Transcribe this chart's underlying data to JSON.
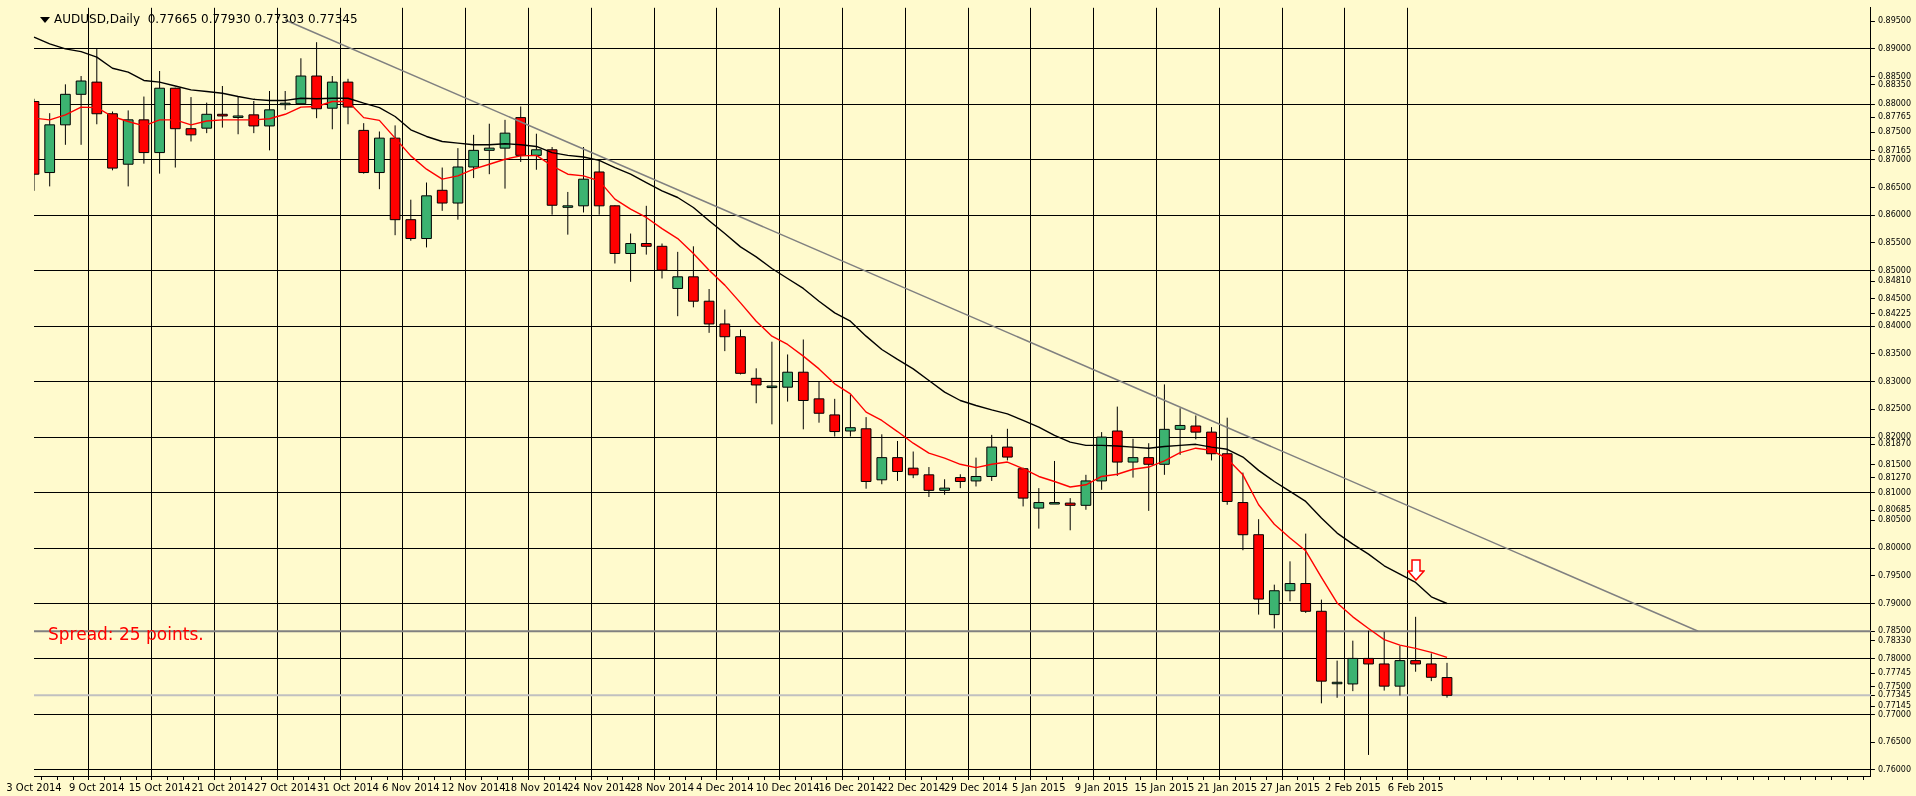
{
  "chart_data": {
    "type": "candlestick",
    "title": "AUDUSD,Daily  0.77665 0.77930 0.77303 0.77345",
    "annotations": [
      "Spread: 25 points."
    ],
    "categories": [
      "3 Oct 2014",
      null,
      null,
      null,
      "9 Oct 2014",
      null,
      null,
      null,
      "15 Oct 2014",
      null,
      null,
      null,
      "21 Oct 2014",
      null,
      null,
      null,
      "27 Oct 2014",
      null,
      null,
      null,
      "31 Oct 2014",
      null,
      null,
      null,
      "6 Nov 2014",
      null,
      null,
      null,
      "12 Nov 2014",
      null,
      null,
      null,
      "18 Nov 2014",
      null,
      null,
      null,
      "24 Nov 2014",
      null,
      null,
      null,
      "28 Nov 2014",
      null,
      null,
      null,
      "4 Dec 2014",
      null,
      null,
      null,
      "10 Dec 2014",
      null,
      null,
      null,
      "16 Dec 2014",
      null,
      null,
      null,
      "22 Dec 2014",
      null,
      null,
      null,
      "29 Dec 2014",
      null,
      null,
      null,
      "5 Jan 2015",
      null,
      null,
      null,
      "9 Jan 2015",
      null,
      null,
      null,
      "15 Jan 2015",
      null,
      null,
      null,
      "21 Jan 2015",
      null,
      null,
      null,
      "27 Jan 2015",
      null,
      null,
      null,
      "2 Feb 2015",
      null,
      null,
      null,
      "6 Feb 2015",
      null,
      null,
      null,
      null,
      null,
      null,
      null,
      null,
      null,
      null,
      null,
      null,
      null,
      null,
      null,
      null,
      null,
      null,
      null,
      null,
      null,
      null,
      null,
      null,
      null,
      null,
      null,
      null,
      null
    ],
    "ohlc": [
      [
        0.8805,
        0.881,
        0.8644,
        0.8674
      ],
      [
        0.8677,
        0.8784,
        0.8652,
        0.8763
      ],
      [
        0.8763,
        0.8836,
        0.8727,
        0.8818
      ],
      [
        0.8818,
        0.8851,
        0.8727,
        0.8842
      ],
      [
        0.884,
        0.89,
        0.8764,
        0.8783
      ],
      [
        0.8783,
        0.8787,
        0.8681,
        0.8685
      ],
      [
        0.8692,
        0.8789,
        0.8652,
        0.8772
      ],
      [
        0.8772,
        0.8814,
        0.8693,
        0.8713
      ],
      [
        0.8713,
        0.886,
        0.8675,
        0.8829
      ],
      [
        0.8829,
        0.883,
        0.8686,
        0.8756
      ],
      [
        0.8756,
        0.8813,
        0.8733,
        0.8745
      ],
      [
        0.8757,
        0.8803,
        0.8748,
        0.8782
      ],
      [
        0.8782,
        0.8833,
        0.8758,
        0.8779
      ],
      [
        0.8779,
        0.8815,
        0.8746,
        0.8779
      ],
      [
        0.8781,
        0.8806,
        0.8748,
        0.8761
      ],
      [
        0.8761,
        0.8824,
        0.8717,
        0.879
      ],
      [
        0.8802,
        0.8824,
        0.879,
        0.8802
      ],
      [
        0.8801,
        0.8883,
        0.88,
        0.8851
      ],
      [
        0.8851,
        0.8912,
        0.8775,
        0.8792
      ],
      [
        0.8793,
        0.8851,
        0.8755,
        0.884
      ],
      [
        0.884,
        0.8846,
        0.8764,
        0.8795
      ],
      [
        0.8753,
        0.8766,
        0.8675,
        0.8677
      ],
      [
        0.8677,
        0.8751,
        0.8647,
        0.8739
      ],
      [
        0.8739,
        0.8762,
        0.8564,
        0.8592
      ],
      [
        0.8592,
        0.8628,
        0.8554,
        0.8558
      ],
      [
        0.8558,
        0.8659,
        0.8542,
        0.8635
      ],
      [
        0.8645,
        0.8686,
        0.8608,
        0.8622
      ],
      [
        0.8622,
        0.8721,
        0.8592,
        0.8687
      ],
      [
        0.8687,
        0.8745,
        0.8667,
        0.8717
      ],
      [
        0.8717,
        0.8765,
        0.8674,
        0.8721
      ],
      [
        0.8721,
        0.8772,
        0.8648,
        0.8748
      ],
      [
        0.8776,
        0.8796,
        0.8696,
        0.8708
      ],
      [
        0.8708,
        0.8747,
        0.8682,
        0.8718
      ],
      [
        0.8718,
        0.8723,
        0.8601,
        0.8618
      ],
      [
        0.8617,
        0.8642,
        0.8565,
        0.8617
      ],
      [
        0.8617,
        0.8723,
        0.8605,
        0.8665
      ],
      [
        0.8678,
        0.8701,
        0.8601,
        0.8617
      ],
      [
        0.8617,
        0.8618,
        0.8513,
        0.8531
      ],
      [
        0.8531,
        0.8567,
        0.848,
        0.8549
      ],
      [
        0.8549,
        0.8617,
        0.8529,
        0.8544
      ],
      [
        0.8544,
        0.8549,
        0.8486,
        0.8501
      ],
      [
        0.8468,
        0.8534,
        0.8418,
        0.8489
      ],
      [
        0.8489,
        0.8544,
        0.8434,
        0.8445
      ],
      [
        0.8445,
        0.8467,
        0.8388,
        0.8404
      ],
      [
        0.8404,
        0.843,
        0.8355,
        0.8381
      ],
      [
        0.8381,
        0.8394,
        0.8313,
        0.8315
      ],
      [
        0.8306,
        0.8324,
        0.8261,
        0.8294
      ],
      [
        0.8292,
        0.8372,
        0.8223,
        0.8292
      ],
      [
        0.829,
        0.8349,
        0.8264,
        0.8317
      ],
      [
        0.8317,
        0.8376,
        0.8214,
        0.8266
      ],
      [
        0.8269,
        0.8301,
        0.8226,
        0.8243
      ],
      [
        0.824,
        0.8269,
        0.8201,
        0.821
      ],
      [
        0.8211,
        0.8277,
        0.8201,
        0.8217
      ],
      [
        0.8215,
        0.8236,
        0.8107,
        0.812
      ],
      [
        0.8123,
        0.8205,
        0.8115,
        0.8163
      ],
      [
        0.8163,
        0.8193,
        0.8121,
        0.8138
      ],
      [
        0.8144,
        0.8174,
        0.8126,
        0.8132
      ],
      [
        0.8132,
        0.8146,
        0.8092,
        0.8104
      ],
      [
        0.8104,
        0.8124,
        0.8096,
        0.8108
      ],
      [
        0.8127,
        0.8133,
        0.8108,
        0.812
      ],
      [
        0.8121,
        0.8163,
        0.8111,
        0.8129
      ],
      [
        0.8129,
        0.8204,
        0.8121,
        0.8182
      ],
      [
        0.8182,
        0.8215,
        0.8158,
        0.8164
      ],
      [
        0.8143,
        0.8145,
        0.8075,
        0.809
      ],
      [
        0.8072,
        0.8108,
        0.8035,
        0.8082
      ],
      [
        0.8082,
        0.8157,
        0.8081,
        0.8082
      ],
      [
        0.8081,
        0.809,
        0.8032,
        0.8077
      ],
      [
        0.8077,
        0.8132,
        0.8069,
        0.8121
      ],
      [
        0.8121,
        0.8209,
        0.8105,
        0.82
      ],
      [
        0.8211,
        0.8255,
        0.813,
        0.8155
      ],
      [
        0.8155,
        0.8197,
        0.8127,
        0.8163
      ],
      [
        0.8163,
        0.8189,
        0.8067,
        0.8151
      ],
      [
        0.8151,
        0.8295,
        0.8132,
        0.8214
      ],
      [
        0.8214,
        0.8252,
        0.8168,
        0.8221
      ],
      [
        0.822,
        0.8239,
        0.8196,
        0.8209
      ],
      [
        0.8209,
        0.8218,
        0.8158,
        0.817
      ],
      [
        0.817,
        0.8235,
        0.8078,
        0.8084
      ],
      [
        0.8082,
        0.8136,
        0.7996,
        0.8024
      ],
      [
        0.8024,
        0.8052,
        0.788,
        0.7908
      ],
      [
        0.788,
        0.7934,
        0.7855,
        0.7923
      ],
      [
        0.7923,
        0.7976,
        0.7904,
        0.7936
      ],
      [
        0.7936,
        0.8026,
        0.7883,
        0.7886
      ],
      [
        0.7886,
        0.7907,
        0.772,
        0.776
      ],
      [
        0.7758,
        0.7797,
        0.773,
        0.7758
      ],
      [
        0.7755,
        0.7833,
        0.7742,
        0.7801
      ],
      [
        0.7801,
        0.7851,
        0.7627,
        0.7791
      ],
      [
        0.7791,
        0.7849,
        0.7743,
        0.7751
      ],
      [
        0.7751,
        0.7824,
        0.7734,
        0.7797
      ],
      [
        0.7797,
        0.7876,
        0.7777,
        0.7791
      ],
      [
        0.7791,
        0.781,
        0.776,
        0.7767
      ],
      [
        0.77665,
        0.7793,
        0.77303,
        0.77345
      ],
      null,
      null,
      null,
      null,
      null,
      null,
      null,
      null,
      null,
      null,
      null,
      null,
      null,
      null,
      null,
      null,
      null,
      null,
      null,
      null,
      null,
      null,
      null,
      null,
      null,
      null,
      null
    ],
    "colors": [
      "#ff0000",
      "#3cb371",
      "#3cb371",
      "#3cb371",
      "#ff0000",
      "#ff0000",
      "#3cb371",
      "#ff0000",
      "#3cb371",
      "#ff0000",
      "#ff0000",
      "#3cb371",
      "#ff0000",
      "#3cb371",
      "#ff0000",
      "#3cb371",
      "#3cb371",
      "#3cb371",
      "#ff0000",
      "#3cb371",
      "#ff0000",
      "#ff0000",
      "#3cb371",
      "#ff0000",
      "#ff0000",
      "#3cb371",
      "#ff0000",
      "#3cb371",
      "#3cb371",
      "#3cb371",
      "#3cb371",
      "#ff0000",
      "#3cb371",
      "#ff0000",
      "#3cb371",
      "#3cb371",
      "#ff0000",
      "#ff0000",
      "#3cb371",
      "#ff0000",
      "#ff0000",
      "#3cb371",
      "#ff0000",
      "#ff0000",
      "#ff0000",
      "#ff0000",
      "#ff0000",
      "#3cb371",
      "#3cb371",
      "#ff0000",
      "#ff0000",
      "#ff0000",
      "#3cb371",
      "#ff0000",
      "#3cb371",
      "#ff0000",
      "#ff0000",
      "#ff0000",
      "#3cb371",
      "#ff0000",
      "#3cb371",
      "#3cb371",
      "#ff0000",
      "#ff0000",
      "#3cb371",
      "#3cb371",
      "#ff0000",
      "#3cb371",
      "#3cb371",
      "#ff0000",
      "#3cb371",
      "#ff0000",
      "#3cb371",
      "#3cb371",
      "#ff0000",
      "#ff0000",
      "#ff0000",
      "#ff0000",
      "#ff0000",
      "#3cb371",
      "#3cb371",
      "#ff0000",
      "#ff0000",
      "#3cb371",
      "#3cb371",
      "#ff0000",
      "#ff0000",
      "#3cb371",
      "#ff0000",
      "#ff0000",
      "#ff0000",
      null,
      null,
      null,
      null,
      null,
      null,
      null,
      null,
      null,
      null,
      null,
      null,
      null,
      null,
      null,
      null,
      null,
      null,
      null,
      null,
      null,
      null,
      null,
      null,
      null,
      null,
      null
    ],
    "series": [
      {
        "type": "line",
        "color": "#ff0000",
        "values": [
          0.8775,
          0.8772,
          0.8781,
          0.8795,
          0.8794,
          0.8778,
          0.8769,
          0.8761,
          0.8772,
          0.8772,
          0.8763,
          0.877,
          0.8772,
          0.8772,
          0.8772,
          0.8774,
          0.8782,
          0.8795,
          0.8796,
          0.8805,
          0.8805,
          0.8776,
          0.8771,
          0.8739,
          0.8707,
          0.8683,
          0.8665,
          0.8671,
          0.8683,
          0.8692,
          0.8701,
          0.8707,
          0.8708,
          0.8689,
          0.8674,
          0.8671,
          0.8662,
          0.8629,
          0.8611,
          0.8596,
          0.8576,
          0.8558,
          0.8531,
          0.8501,
          0.8474,
          0.8442,
          0.8409,
          0.8382,
          0.8367,
          0.8346,
          0.8323,
          0.8296,
          0.8278,
          0.8245,
          0.823,
          0.821,
          0.8189,
          0.8171,
          0.8162,
          0.8151,
          0.8145,
          0.8151,
          0.8155,
          0.8143,
          0.8129,
          0.812,
          0.811,
          0.8114,
          0.8129,
          0.8133,
          0.8142,
          0.8146,
          0.8157,
          0.8172,
          0.818,
          0.8176,
          0.8161,
          0.8132,
          0.8078,
          0.8043,
          0.8018,
          0.7995,
          0.7947,
          0.7901,
          0.7876,
          0.7855,
          0.7835,
          0.7825,
          0.7819,
          0.7812,
          0.7803,
          null,
          null,
          null,
          null,
          null,
          null,
          null,
          null,
          null,
          null,
          null,
          null,
          null,
          null,
          null,
          null,
          null,
          null,
          null,
          null,
          null,
          null,
          null,
          null,
          null,
          null,
          null
        ]
      },
      {
        "type": "line",
        "color": "#000000",
        "values": [
          0.8921,
          0.8909,
          0.89,
          0.8895,
          0.8885,
          0.8865,
          0.8858,
          0.8843,
          0.884,
          0.8833,
          0.8826,
          0.8823,
          0.882,
          0.8814,
          0.8809,
          0.8807,
          0.8807,
          0.8811,
          0.881,
          0.8811,
          0.8811,
          0.8802,
          0.8794,
          0.8778,
          0.8754,
          0.8742,
          0.8733,
          0.873,
          0.8727,
          0.8727,
          0.8729,
          0.8727,
          0.8724,
          0.8713,
          0.8708,
          0.8705,
          0.8699,
          0.8686,
          0.8674,
          0.8659,
          0.8644,
          0.8632,
          0.8614,
          0.859,
          0.8567,
          0.8543,
          0.8525,
          0.8504,
          0.8486,
          0.8468,
          0.8445,
          0.8424,
          0.8409,
          0.8382,
          0.8358,
          0.834,
          0.8323,
          0.8302,
          0.8281,
          0.8266,
          0.8257,
          0.8249,
          0.8242,
          0.823,
          0.8218,
          0.8203,
          0.8191,
          0.8185,
          0.8185,
          0.8184,
          0.8182,
          0.818,
          0.8183,
          0.8185,
          0.8187,
          0.8182,
          0.8178,
          0.8164,
          0.814,
          0.812,
          0.8102,
          0.8084,
          0.8054,
          0.8027,
          0.8007,
          0.7989,
          0.7968,
          0.7953,
          0.7938,
          0.7912,
          0.79,
          null,
          null,
          null,
          null,
          null,
          null,
          null,
          null,
          null,
          null,
          null,
          null,
          null,
          null,
          null,
          null,
          null,
          null,
          null,
          null,
          null,
          null,
          null,
          null,
          null,
          null,
          null
        ]
      },
      {
        "type": "line",
        "color": "#808080",
        "values": [
          null,
          null,
          null,
          null,
          null,
          null,
          null,
          null,
          null,
          null,
          null,
          null,
          null,
          null,
          null,
          null,
          0.8952,
          null,
          null,
          null,
          null,
          null,
          null,
          null,
          null,
          null,
          null,
          null,
          null,
          null,
          null,
          null,
          null,
          null,
          null,
          null,
          null,
          null,
          null,
          null,
          null,
          null,
          null,
          null,
          null,
          null,
          null,
          null,
          null,
          null,
          null,
          null,
          null,
          null,
          null,
          null,
          null,
          null,
          null,
          null,
          null,
          null,
          null,
          null,
          null,
          null,
          null,
          null,
          null,
          null,
          null,
          null,
          null,
          null,
          null,
          null,
          null,
          null,
          null,
          null,
          null,
          null,
          null,
          null,
          null,
          null,
          null,
          null,
          null,
          null,
          null,
          null,
          null,
          null,
          null,
          null,
          null,
          null,
          null,
          null,
          null,
          null,
          null,
          null,
          null,
          null,
          0.785,
          null,
          null,
          null,
          null,
          null,
          null,
          null,
          null,
          null,
          null,
          null
        ]
      }
    ],
    "ref_lines": [
      {
        "axis": "y",
        "value": 0.785,
        "color": "#808080"
      },
      {
        "axis": "y",
        "value": 0.77345,
        "color": "#c0c0c0"
      }
    ],
    "ylim": [
      0.7589,
      0.8974
    ],
    "yticks": [
      {
        "value": 0.895,
        "label": "0.89500"
      },
      {
        "value": 0.89,
        "label": "0.89000"
      },
      {
        "value": 0.885,
        "label": "0.88500"
      },
      {
        "value": 0.8835,
        "label": "0.88350"
      },
      {
        "value": 0.88,
        "label": "0.88000"
      },
      {
        "value": 0.87765,
        "label": "0.87765"
      },
      {
        "value": 0.875,
        "label": "0.87500"
      },
      {
        "value": 0.87165,
        "label": "0.87165"
      },
      {
        "value": 0.87,
        "label": "0.87000"
      },
      {
        "value": 0.865,
        "label": "0.86500"
      },
      {
        "value": 0.86,
        "label": "0.86000"
      },
      {
        "value": 0.855,
        "label": "0.85500"
      },
      {
        "value": 0.85,
        "label": "0.85000"
      },
      {
        "value": 0.8481,
        "label": "0.84810"
      },
      {
        "value": 0.845,
        "label": "0.84500"
      },
      {
        "value": 0.84225,
        "label": "0.84225"
      },
      {
        "value": 0.84,
        "label": "0.84000"
      },
      {
        "value": 0.835,
        "label": "0.83500"
      },
      {
        "value": 0.83,
        "label": "0.83000"
      },
      {
        "value": 0.825,
        "label": "0.82500"
      },
      {
        "value": 0.82,
        "label": "0.82000"
      },
      {
        "value": 0.8187,
        "label": "0.81870"
      },
      {
        "value": 0.815,
        "label": "0.81500"
      },
      {
        "value": 0.8127,
        "label": "0.81270"
      },
      {
        "value": 0.81,
        "label": "0.81000"
      },
      {
        "value": 0.80685,
        "label": "0.80685"
      },
      {
        "value": 0.805,
        "label": "0.80500"
      },
      {
        "value": 0.8,
        "label": "0.80000"
      },
      {
        "value": 0.795,
        "label": "0.79500"
      },
      {
        "value": 0.79,
        "label": "0.79000"
      },
      {
        "value": 0.785,
        "label": "0.78500"
      },
      {
        "value": 0.7833,
        "label": "0.78330"
      },
      {
        "value": 0.78,
        "label": "0.78000"
      },
      {
        "value": 0.77745,
        "label": "0.77745"
      },
      {
        "value": 0.775,
        "label": "0.77500"
      },
      {
        "value": 0.77345,
        "label": "0.77345"
      },
      {
        "value": 0.77145,
        "label": "0.77145"
      },
      {
        "value": 0.77,
        "label": "0.77000"
      },
      {
        "value": 0.765,
        "label": "0.76500"
      },
      {
        "value": 0.76,
        "label": "0.76000"
      }
    ],
    "grid": true
  }
}
